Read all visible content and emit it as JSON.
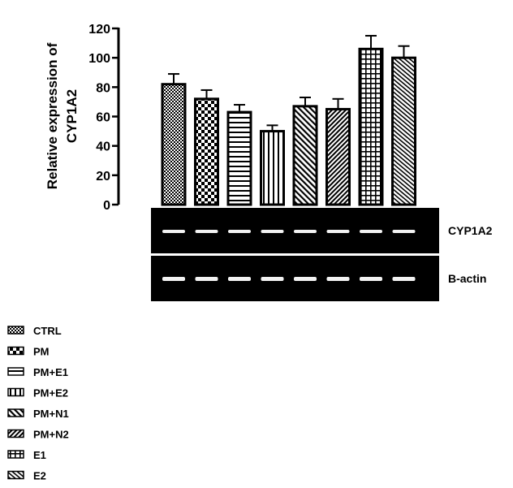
{
  "chart_data": {
    "type": "bar",
    "ylabel": [
      "Relative expression of",
      "CYP1A2"
    ],
    "ylim": [
      0,
      120
    ],
    "yticks": [
      0,
      20,
      40,
      60,
      80,
      100,
      120
    ],
    "grid": false,
    "legend_position": "bottom-left",
    "series": [
      {
        "name": "CTRL",
        "value": 82,
        "error": 7,
        "pattern": "fine-check"
      },
      {
        "name": "PM",
        "value": 72,
        "error": 6,
        "pattern": "checker"
      },
      {
        "name": "PM+E1",
        "value": 63,
        "error": 5,
        "pattern": "horizontal"
      },
      {
        "name": "PM+E2",
        "value": 50,
        "error": 4,
        "pattern": "vertical"
      },
      {
        "name": "PM+N1",
        "value": 67,
        "error": 6,
        "pattern": "diag-up"
      },
      {
        "name": "PM+N2",
        "value": 65,
        "error": 7,
        "pattern": "diag-down"
      },
      {
        "name": "E1",
        "value": 106,
        "error": 9,
        "pattern": "grid"
      },
      {
        "name": "E2",
        "value": 100,
        "error": 8,
        "pattern": "diag-up-fine"
      }
    ],
    "gel_labels": [
      "CYP1A2",
      "B-actin"
    ]
  }
}
